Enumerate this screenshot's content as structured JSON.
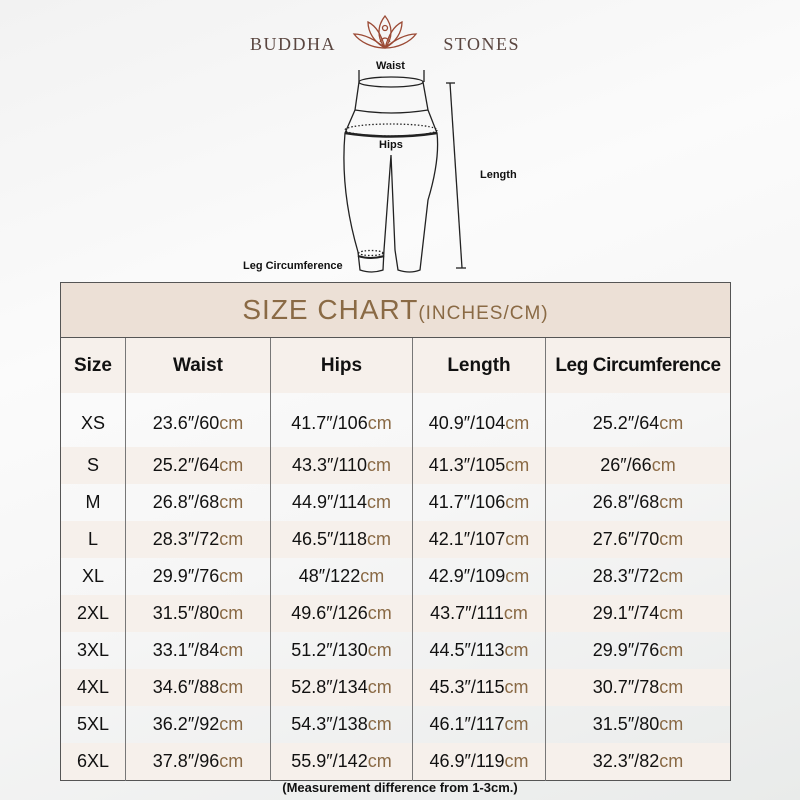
{
  "brand": {
    "left": "BUDDHA",
    "right": "STONES",
    "logo_icon": "lotus-meditation-icon",
    "color": "#8b3a2a"
  },
  "diagram": {
    "waist": "Waist",
    "hips": "Hips",
    "length": "Length",
    "leg": "Leg Circumference"
  },
  "table": {
    "title_main": "SIZE CHART",
    "title_sub": "(INCHES/CM)",
    "headers": [
      "Size",
      "Waist",
      "Hips",
      "Length",
      "Leg Circumference"
    ],
    "rows": [
      {
        "size": "XS",
        "cells": [
          {
            "v": "23.6″/60",
            "u": "cm"
          },
          {
            "v": "41.7″/106",
            "u": "cm"
          },
          {
            "v": "40.9″/104",
            "u": "cm"
          },
          {
            "v": "25.2″/64",
            "u": "cm"
          }
        ]
      },
      {
        "size": "S",
        "cells": [
          {
            "v": "25.2″/64",
            "u": "cm"
          },
          {
            "v": "43.3″/110",
            "u": "cm"
          },
          {
            "v": "41.3″/105",
            "u": "cm"
          },
          {
            "v": "26″/66",
            "u": "cm"
          }
        ]
      },
      {
        "size": "M",
        "cells": [
          {
            "v": "26.8″/68",
            "u": "cm"
          },
          {
            "v": "44.9″/114",
            "u": "cm"
          },
          {
            "v": "41.7″/106",
            "u": "cm"
          },
          {
            "v": "26.8″/68",
            "u": "cm"
          }
        ]
      },
      {
        "size": "L",
        "cells": [
          {
            "v": "28.3″/72",
            "u": "cm"
          },
          {
            "v": "46.5″/118",
            "u": "cm"
          },
          {
            "v": "42.1″/107",
            "u": "cm"
          },
          {
            "v": "27.6″/70",
            "u": "cm"
          }
        ]
      },
      {
        "size": "XL",
        "cells": [
          {
            "v": "29.9″/76",
            "u": "cm"
          },
          {
            "v": "48″/122",
            "u": "cm"
          },
          {
            "v": "42.9″/109",
            "u": "cm"
          },
          {
            "v": "28.3″/72",
            "u": "cm"
          }
        ]
      },
      {
        "size": "2XL",
        "cells": [
          {
            "v": "31.5″/80",
            "u": "cm"
          },
          {
            "v": "49.6″/126",
            "u": "cm"
          },
          {
            "v": "43.7″/111",
            "u": "cm"
          },
          {
            "v": "29.1″/74",
            "u": "cm"
          }
        ]
      },
      {
        "size": "3XL",
        "cells": [
          {
            "v": "33.1″/84",
            "u": "cm"
          },
          {
            "v": "51.2″/130",
            "u": "cm"
          },
          {
            "v": "44.5″/113",
            "u": "cm"
          },
          {
            "v": "29.9″/76",
            "u": "cm"
          }
        ]
      },
      {
        "size": "4XL",
        "cells": [
          {
            "v": "34.6″/88",
            "u": "cm"
          },
          {
            "v": "52.8″/134",
            "u": "cm"
          },
          {
            "v": "45.3″/115",
            "u": "cm"
          },
          {
            "v": "30.7″/78",
            "u": "cm"
          }
        ]
      },
      {
        "size": "5XL",
        "cells": [
          {
            "v": "36.2″/92",
            "u": "cm"
          },
          {
            "v": "54.3″/138",
            "u": "cm"
          },
          {
            "v": "46.1″/117",
            "u": "cm"
          },
          {
            "v": "31.5″/80",
            "u": "cm"
          }
        ]
      },
      {
        "size": "6XL",
        "cells": [
          {
            "v": "37.8″/96",
            "u": "cm"
          },
          {
            "v": "55.9″/142",
            "u": "cm"
          },
          {
            "v": "46.9″/119",
            "u": "cm"
          },
          {
            "v": "32.3″/82",
            "u": "cm"
          }
        ]
      }
    ]
  },
  "note": "(Measurement difference from 1-3cm.)"
}
